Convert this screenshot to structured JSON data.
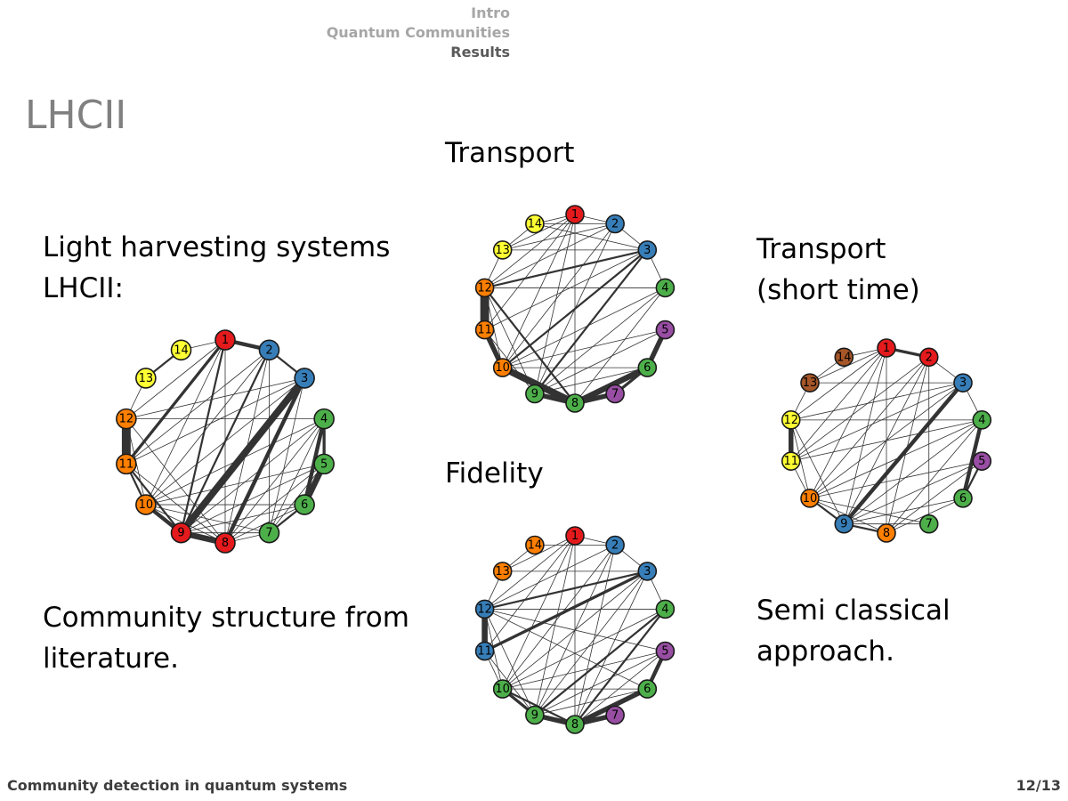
{
  "nav": {
    "items": [
      {
        "label": "Intro",
        "active": false
      },
      {
        "label": "Quantum Communities",
        "active": false
      },
      {
        "label": "Results",
        "active": true
      }
    ]
  },
  "frame_title": "LHCII",
  "left_text": {
    "line1": "Light harvesting systems",
    "line2": "LHCII:",
    "caption1": "Community structure from",
    "caption2": "literature."
  },
  "middle_text": {
    "transport": "Transport",
    "fidelity": "Fidelity"
  },
  "right_text": {
    "line1": "Transport",
    "line2": "(short time)",
    "caption1": "Semi classical",
    "caption2": "approach."
  },
  "footer": {
    "title": "Community detection in quantum systems",
    "page": "12/13"
  },
  "colors": {
    "red": "#e41a1c",
    "blue": "#377eb8",
    "green": "#4daf4a",
    "purple": "#984ea3",
    "orange": "#ff7f00",
    "yellow": "#ffff33",
    "brown": "#a65628",
    "edge": "#333333"
  },
  "graphs": {
    "literature": {
      "node_labels": [
        "1",
        "2",
        "3",
        "4",
        "5",
        "6",
        "7",
        "8",
        "9",
        "10",
        "11",
        "12",
        "13",
        "14"
      ],
      "node_colors": [
        "red",
        "blue",
        "blue",
        "green",
        "green",
        "green",
        "green",
        "red",
        "red",
        "orange",
        "orange",
        "orange",
        "yellow",
        "yellow"
      ],
      "edges": [
        [
          1,
          2,
          4
        ],
        [
          2,
          3,
          2
        ],
        [
          13,
          14,
          2
        ],
        [
          4,
          5,
          3
        ],
        [
          5,
          6,
          6
        ],
        [
          4,
          6,
          4
        ],
        [
          11,
          12,
          9
        ],
        [
          10,
          11,
          2
        ],
        [
          3,
          9,
          7
        ],
        [
          3,
          8,
          4
        ],
        [
          8,
          9,
          6
        ],
        [
          9,
          10,
          4
        ],
        [
          1,
          11,
          3
        ],
        [
          2,
          9,
          2
        ],
        [
          1,
          9,
          2
        ],
        [
          9,
          11,
          2
        ],
        [
          6,
          7,
          2
        ],
        [
          7,
          8,
          1
        ],
        [
          1,
          8,
          1
        ],
        [
          1,
          10,
          1
        ],
        [
          1,
          12,
          1
        ],
        [
          2,
          8,
          1
        ],
        [
          2,
          10,
          1
        ],
        [
          2,
          11,
          1
        ],
        [
          3,
          7,
          1
        ],
        [
          3,
          10,
          1
        ],
        [
          3,
          11,
          1
        ],
        [
          3,
          12,
          1
        ],
        [
          4,
          7,
          1
        ],
        [
          4,
          8,
          1
        ],
        [
          4,
          9,
          1
        ],
        [
          4,
          10,
          1
        ],
        [
          4,
          12,
          1
        ],
        [
          5,
          7,
          1
        ],
        [
          5,
          8,
          1
        ],
        [
          5,
          9,
          1
        ],
        [
          5,
          10,
          1
        ],
        [
          6,
          8,
          1
        ],
        [
          6,
          9,
          1
        ],
        [
          6,
          10,
          1
        ],
        [
          7,
          9,
          1
        ],
        [
          7,
          10,
          1
        ],
        [
          8,
          10,
          1
        ],
        [
          8,
          11,
          1
        ],
        [
          8,
          12,
          1
        ],
        [
          10,
          12,
          1
        ],
        [
          12,
          13,
          1
        ],
        [
          1,
          14,
          1
        ],
        [
          2,
          7,
          1
        ]
      ]
    },
    "transport": {
      "node_labels": [
        "1",
        "2",
        "3",
        "4",
        "5",
        "6",
        "7",
        "8",
        "9",
        "10",
        "11",
        "12",
        "13",
        "14"
      ],
      "node_colors": [
        "red",
        "blue",
        "blue",
        "green",
        "purple",
        "green",
        "purple",
        "green",
        "green",
        "orange",
        "orange",
        "orange",
        "yellow",
        "yellow"
      ],
      "edges": [
        [
          11,
          12,
          9
        ],
        [
          10,
          11,
          5
        ],
        [
          10,
          8,
          7
        ],
        [
          8,
          9,
          5
        ],
        [
          8,
          6,
          6
        ],
        [
          8,
          7,
          5
        ],
        [
          5,
          6,
          5
        ],
        [
          7,
          6,
          3
        ],
        [
          1,
          2,
          1
        ],
        [
          2,
          3,
          1
        ],
        [
          3,
          4,
          1
        ],
        [
          13,
          14,
          1
        ],
        [
          3,
          12,
          2
        ],
        [
          3,
          10,
          2
        ],
        [
          3,
          9,
          2
        ],
        [
          12,
          8,
          2
        ],
        [
          1,
          9,
          1
        ],
        [
          1,
          8,
          1
        ],
        [
          1,
          10,
          1
        ],
        [
          1,
          11,
          1
        ],
        [
          1,
          12,
          1
        ],
        [
          1,
          13,
          1
        ],
        [
          2,
          9,
          1
        ],
        [
          2,
          10,
          1
        ],
        [
          2,
          12,
          1
        ],
        [
          2,
          14,
          1
        ],
        [
          3,
          11,
          1
        ],
        [
          3,
          13,
          1
        ],
        [
          3,
          14,
          1
        ],
        [
          4,
          9,
          1
        ],
        [
          4,
          10,
          1
        ],
        [
          4,
          12,
          1
        ],
        [
          5,
          9,
          1
        ],
        [
          5,
          10,
          1
        ],
        [
          6,
          9,
          1
        ],
        [
          6,
          10,
          1
        ],
        [
          9,
          12,
          1
        ],
        [
          9,
          11,
          1
        ],
        [
          10,
          12,
          1
        ],
        [
          12,
          13,
          1
        ],
        [
          1,
          14,
          1
        ],
        [
          2,
          13,
          1
        ],
        [
          4,
          8,
          1
        ]
      ]
    },
    "fidelity": {
      "node_labels": [
        "1",
        "2",
        "3",
        "4",
        "5",
        "6",
        "7",
        "8",
        "9",
        "10",
        "11",
        "12",
        "13",
        "14"
      ],
      "node_colors": [
        "red",
        "blue",
        "blue",
        "green",
        "purple",
        "green",
        "purple",
        "green",
        "green",
        "green",
        "blue",
        "blue",
        "orange",
        "orange"
      ],
      "edges": [
        [
          11,
          12,
          6
        ],
        [
          8,
          9,
          5
        ],
        [
          8,
          6,
          5
        ],
        [
          8,
          7,
          5
        ],
        [
          5,
          6,
          4
        ],
        [
          10,
          9,
          3
        ],
        [
          8,
          10,
          2
        ],
        [
          3,
          11,
          3
        ],
        [
          3,
          12,
          2
        ],
        [
          4,
          9,
          2
        ],
        [
          4,
          8,
          2
        ],
        [
          2,
          3,
          1
        ],
        [
          1,
          2,
          1
        ],
        [
          13,
          14,
          1
        ],
        [
          12,
          13,
          1
        ],
        [
          3,
          4,
          1
        ],
        [
          1,
          8,
          1
        ],
        [
          1,
          9,
          1
        ],
        [
          1,
          10,
          1
        ],
        [
          1,
          11,
          1
        ],
        [
          1,
          12,
          1
        ],
        [
          1,
          13,
          1
        ],
        [
          2,
          8,
          1
        ],
        [
          2,
          9,
          1
        ],
        [
          2,
          10,
          1
        ],
        [
          2,
          12,
          1
        ],
        [
          2,
          14,
          1
        ],
        [
          3,
          8,
          1
        ],
        [
          3,
          9,
          1
        ],
        [
          3,
          10,
          1
        ],
        [
          3,
          13,
          1
        ],
        [
          4,
          10,
          1
        ],
        [
          4,
          12,
          1
        ],
        [
          5,
          8,
          1
        ],
        [
          5,
          9,
          1
        ],
        [
          5,
          10,
          1
        ],
        [
          5,
          12,
          1
        ],
        [
          6,
          9,
          1
        ],
        [
          6,
          10,
          1
        ],
        [
          6,
          12,
          1
        ],
        [
          9,
          12,
          1
        ],
        [
          10,
          12,
          1
        ],
        [
          10,
          11,
          1
        ],
        [
          9,
          11,
          1
        ]
      ]
    },
    "semiclassical": {
      "node_labels": [
        "1",
        "2",
        "3",
        "4",
        "5",
        "6",
        "7",
        "8",
        "9",
        "10",
        "11",
        "12",
        "13",
        "14"
      ],
      "node_colors": [
        "red",
        "red",
        "blue",
        "green",
        "purple",
        "green",
        "green",
        "orange",
        "blue",
        "orange",
        "yellow",
        "yellow",
        "brown",
        "brown"
      ],
      "edges": [
        [
          1,
          2,
          3
        ],
        [
          3,
          9,
          4
        ],
        [
          11,
          12,
          5
        ],
        [
          4,
          6,
          4
        ],
        [
          9,
          8,
          2
        ],
        [
          9,
          10,
          2
        ],
        [
          13,
          14,
          1
        ],
        [
          14,
          1,
          1
        ],
        [
          2,
          3,
          1
        ],
        [
          1,
          8,
          1
        ],
        [
          1,
          9,
          1
        ],
        [
          1,
          10,
          1
        ],
        [
          1,
          11,
          1
        ],
        [
          1,
          12,
          1
        ],
        [
          2,
          7,
          1
        ],
        [
          2,
          8,
          1
        ],
        [
          2,
          9,
          1
        ],
        [
          2,
          10,
          1
        ],
        [
          2,
          11,
          1
        ],
        [
          3,
          10,
          1
        ],
        [
          3,
          11,
          1
        ],
        [
          3,
          12,
          1
        ],
        [
          3,
          13,
          1
        ],
        [
          4,
          8,
          1
        ],
        [
          4,
          9,
          1
        ],
        [
          4,
          10,
          1
        ],
        [
          4,
          11,
          1
        ],
        [
          5,
          8,
          1
        ],
        [
          5,
          9,
          1
        ],
        [
          5,
          10,
          1
        ],
        [
          6,
          8,
          1
        ],
        [
          6,
          9,
          1
        ],
        [
          7,
          9,
          1
        ],
        [
          7,
          10,
          1
        ],
        [
          8,
          10,
          1
        ],
        [
          10,
          11,
          1
        ],
        [
          10,
          12,
          1
        ],
        [
          12,
          13,
          1
        ],
        [
          12,
          9,
          1
        ],
        [
          1,
          13,
          1
        ],
        [
          4,
          12,
          1
        ],
        [
          5,
          6,
          2
        ],
        [
          3,
          4,
          1
        ]
      ]
    }
  }
}
